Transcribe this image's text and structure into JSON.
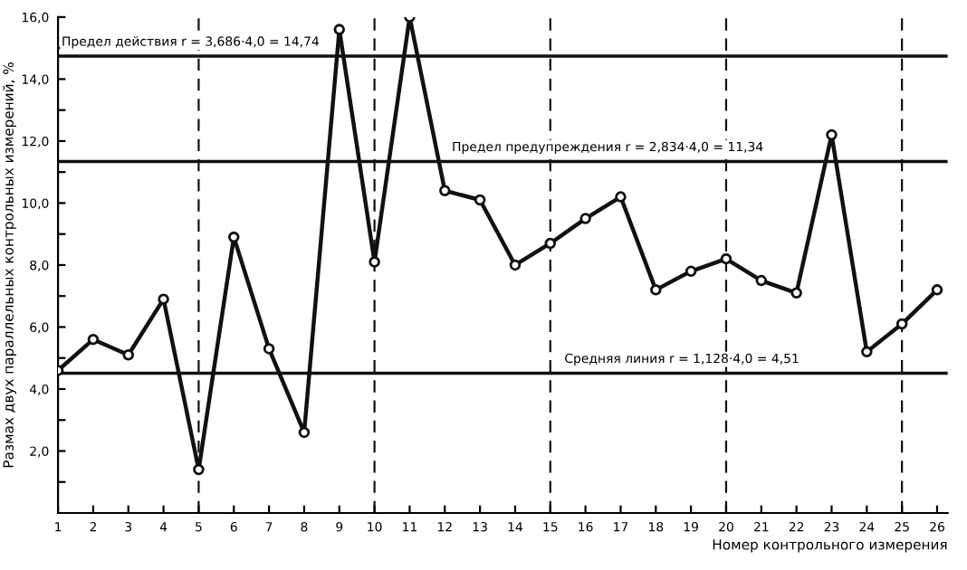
{
  "chart_data": {
    "type": "line",
    "xlabel": "Номер контрольного измерения",
    "ylabel": "Размах двух параллельных контрольных измерений, %",
    "x": [
      1,
      2,
      3,
      4,
      5,
      6,
      7,
      8,
      9,
      10,
      11,
      12,
      13,
      14,
      15,
      16,
      17,
      18,
      19,
      20,
      21,
      22,
      23,
      24,
      25,
      26
    ],
    "series": [
      {
        "color": "#111111",
        "values": [
          4.6,
          5.6,
          5.1,
          6.9,
          1.4,
          8.9,
          5.3,
          2.6,
          15.6,
          8.1,
          16.0,
          10.4,
          10.1,
          8.0,
          8.7,
          9.5,
          10.2,
          7.2,
          7.8,
          8.2,
          7.5,
          7.1,
          12.2,
          5.2,
          6.1,
          7.2
        ]
      }
    ],
    "xlim": [
      1,
      26.3
    ],
    "xticks": [
      1,
      2,
      3,
      4,
      5,
      6,
      7,
      8,
      9,
      10,
      11,
      12,
      13,
      14,
      15,
      16,
      17,
      18,
      19,
      20,
      21,
      22,
      23,
      24,
      25,
      26
    ],
    "ylim": [
      0,
      16
    ],
    "yticks": [
      {
        "value": 1,
        "label": null
      },
      {
        "value": 2,
        "label": "2,0"
      },
      {
        "value": 3,
        "label": null
      },
      {
        "value": 4,
        "label": "4,0"
      },
      {
        "value": 5,
        "label": null
      },
      {
        "value": 6,
        "label": "6,0"
      },
      {
        "value": 7,
        "label": null
      },
      {
        "value": 8,
        "label": "8,0"
      },
      {
        "value": 9,
        "label": null
      },
      {
        "value": 10,
        "label": "10,0"
      },
      {
        "value": 11,
        "label": null
      },
      {
        "value": 12,
        "label": "12,0"
      },
      {
        "value": 13,
        "label": null
      },
      {
        "value": 14,
        "label": "14,0"
      },
      {
        "value": 15,
        "label": null
      },
      {
        "value": 16,
        "label": "16,0"
      }
    ],
    "ref_lines": [
      {
        "axis": "y",
        "value": 14.74,
        "label": "Предел действия r = 3,686·4,0 = 14,74",
        "color": "#111111",
        "line_style": "solid"
      },
      {
        "axis": "y",
        "value": 11.34,
        "label": "Предел предупреждения r = 2,834·4,0 = 11,34",
        "color": "#111111",
        "line_style": "solid"
      },
      {
        "axis": "y",
        "value": 4.51,
        "label": "Средняя линия r = 1,128·4,0 = 4,51",
        "color": "#111111",
        "line_style": "solid"
      },
      {
        "axis": "x",
        "value": 5,
        "color": "#111111",
        "line_style": "dashed"
      },
      {
        "axis": "x",
        "value": 10,
        "color": "#111111",
        "line_style": "dashed"
      },
      {
        "axis": "x",
        "value": 15,
        "color": "#111111",
        "line_style": "dashed"
      },
      {
        "axis": "x",
        "value": 20,
        "color": "#111111",
        "line_style": "dashed"
      },
      {
        "axis": "x",
        "value": 25,
        "color": "#111111",
        "line_style": "dashed"
      }
    ],
    "marker": "circle",
    "line_style": "solid",
    "grid": false,
    "legend": false
  }
}
